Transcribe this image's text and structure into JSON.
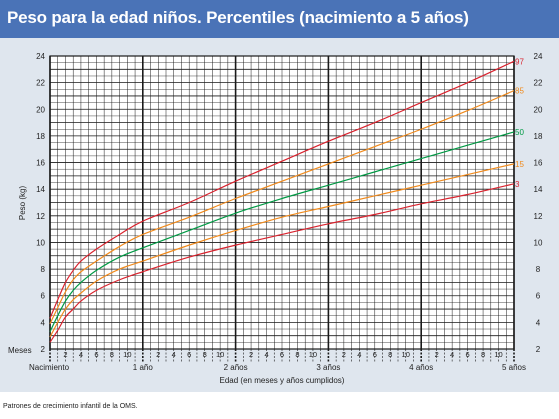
{
  "title": "Peso para la edad niños. Percentiles (nacimiento a 5 años)",
  "footer": "Patrones de crecimiento infantil de la OMS.",
  "colors": {
    "title_bar": "#4a73b7",
    "panel": "#dfe6ee",
    "p97": "#d9232e",
    "p85": "#f08a1c",
    "p50": "#009a44",
    "p15": "#f08a1c",
    "p3": "#d9232e"
  },
  "chart_data": {
    "type": "line",
    "title": "Peso para la edad niños. Percentiles (nacimiento a 5 años)",
    "xlabel": "Edad (en meses y años cumplidos)",
    "ylabel": "Peso (kg)",
    "x_unit_label": "Meses",
    "xlim": [
      0,
      60
    ],
    "ylim": [
      2,
      24
    ],
    "y_ticks": [
      2,
      4,
      6,
      8,
      10,
      12,
      14,
      16,
      18,
      20,
      22,
      24
    ],
    "month_tick_labels": [
      "2",
      "4",
      "6",
      "8",
      "10"
    ],
    "year_labels": [
      {
        "month": 0,
        "label": "Nacimiento"
      },
      {
        "month": 12,
        "label": "1 año"
      },
      {
        "month": 24,
        "label": "2 años"
      },
      {
        "month": 36,
        "label": "3 años"
      },
      {
        "month": 48,
        "label": "4 años"
      },
      {
        "month": 60,
        "label": "5 años"
      }
    ],
    "grid": true,
    "x": [
      0,
      1,
      2,
      3,
      4,
      6,
      9,
      12,
      18,
      24,
      30,
      36,
      42,
      48,
      54,
      60
    ],
    "series": [
      {
        "name": "97",
        "color": "#d9232e",
        "values": [
          4.3,
          5.7,
          7.0,
          7.9,
          8.6,
          9.5,
          10.6,
          11.6,
          13.0,
          14.6,
          16.1,
          17.6,
          19.0,
          20.5,
          22.0,
          23.6
        ]
      },
      {
        "name": "85",
        "color": "#f08a1c",
        "values": [
          3.9,
          5.1,
          6.3,
          7.2,
          7.8,
          8.6,
          9.7,
          10.6,
          11.9,
          13.3,
          14.6,
          15.9,
          17.2,
          18.5,
          19.9,
          21.4
        ]
      },
      {
        "name": "50",
        "color": "#009a44",
        "values": [
          3.3,
          4.5,
          5.6,
          6.4,
          7.0,
          7.9,
          8.9,
          9.6,
          10.9,
          12.2,
          13.3,
          14.3,
          15.3,
          16.3,
          17.3,
          18.3
        ]
      },
      {
        "name": "15",
        "color": "#f08a1c",
        "values": [
          2.9,
          4.0,
          5.0,
          5.7,
          6.2,
          7.1,
          8.0,
          8.6,
          9.8,
          10.9,
          11.9,
          12.7,
          13.5,
          14.3,
          15.1,
          15.9
        ]
      },
      {
        "name": "3",
        "color": "#d9232e",
        "values": [
          2.5,
          3.4,
          4.4,
          5.0,
          5.6,
          6.4,
          7.2,
          7.8,
          8.9,
          9.8,
          10.6,
          11.4,
          12.1,
          12.9,
          13.6,
          14.4
        ]
      }
    ]
  }
}
